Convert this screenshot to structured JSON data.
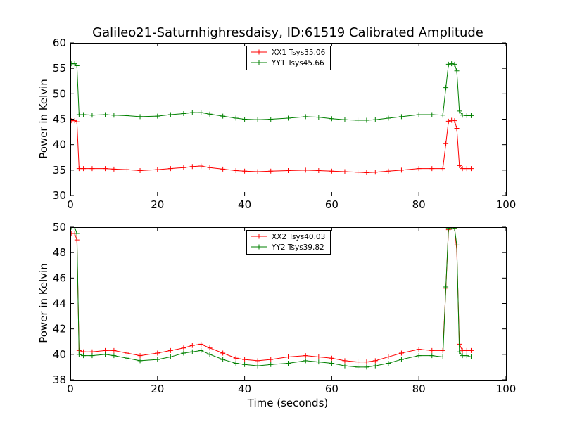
{
  "chart_data": [
    {
      "type": "line",
      "title": "Galileo21-Saturnhighresdaisy, ID:61519 Calibrated Amplitude",
      "xlabel": "",
      "ylabel": "Power in Kelvin",
      "xlim": [
        0,
        100
      ],
      "ylim": [
        30,
        60
      ],
      "xticks": [
        "0",
        "20",
        "40",
        "60",
        "80",
        "100"
      ],
      "yticks": [
        "30",
        "35",
        "40",
        "45",
        "50",
        "55",
        "60"
      ],
      "legend_position": "top-center",
      "series": [
        {
          "name": "XX1 Tsys35.06",
          "color": "#ff0000",
          "x": [
            0.3,
            1.0,
            1.5,
            2.0,
            3,
            5,
            8,
            10,
            13,
            16,
            20,
            23,
            26,
            28,
            30,
            32,
            35,
            38,
            40,
            43,
            46,
            50,
            54,
            57,
            60,
            63,
            66,
            68,
            70,
            73,
            76,
            80,
            83,
            85.5,
            86.2,
            86.8,
            87.5,
            88.2,
            88.7,
            89.3,
            90,
            91,
            92
          ],
          "y": [
            44.7,
            44.7,
            44.5,
            35.3,
            35.3,
            35.3,
            35.3,
            35.2,
            35.1,
            34.9,
            35.1,
            35.3,
            35.5,
            35.7,
            35.8,
            35.5,
            35.2,
            34.9,
            34.8,
            34.7,
            34.8,
            34.9,
            35.0,
            34.9,
            34.8,
            34.7,
            34.6,
            34.5,
            34.6,
            34.8,
            35.0,
            35.3,
            35.3,
            35.3,
            40.2,
            44.6,
            44.8,
            44.7,
            43.2,
            35.9,
            35.3,
            35.3,
            35.3
          ]
        },
        {
          "name": "YY1 Tsys45.66",
          "color": "#008000",
          "x": [
            0.3,
            1.0,
            1.5,
            2.0,
            3,
            5,
            8,
            10,
            13,
            16,
            20,
            23,
            26,
            28,
            30,
            32,
            35,
            38,
            40,
            43,
            46,
            50,
            54,
            57,
            60,
            63,
            66,
            68,
            70,
            73,
            76,
            80,
            83,
            85.5,
            86.2,
            86.8,
            87.5,
            88.2,
            88.7,
            89.3,
            90,
            91,
            92
          ],
          "y": [
            55.9,
            55.9,
            55.5,
            45.9,
            45.9,
            45.8,
            45.9,
            45.8,
            45.7,
            45.5,
            45.6,
            45.9,
            46.1,
            46.3,
            46.3,
            46.0,
            45.6,
            45.2,
            45.0,
            44.9,
            45.0,
            45.2,
            45.5,
            45.4,
            45.1,
            44.9,
            44.8,
            44.8,
            44.9,
            45.2,
            45.5,
            45.9,
            45.9,
            45.8,
            51.2,
            55.8,
            55.9,
            55.8,
            54.5,
            46.6,
            45.8,
            45.7,
            45.7
          ]
        }
      ]
    },
    {
      "type": "line",
      "title": "",
      "xlabel": "Time (seconds)",
      "ylabel": "Power in Kelvin",
      "xlim": [
        0,
        100
      ],
      "ylim": [
        38,
        50
      ],
      "xticks": [
        "0",
        "20",
        "40",
        "60",
        "80",
        "100"
      ],
      "yticks": [
        "38",
        "40",
        "42",
        "44",
        "46",
        "48",
        "50"
      ],
      "legend_position": "top-center",
      "series": [
        {
          "name": "XX2 Tsys40.03",
          "color": "#ff0000",
          "x": [
            0.3,
            1.0,
            1.5,
            2.0,
            3,
            5,
            8,
            10,
            13,
            16,
            20,
            23,
            26,
            28,
            30,
            32,
            35,
            38,
            40,
            43,
            46,
            50,
            54,
            57,
            60,
            63,
            66,
            68,
            70,
            73,
            76,
            80,
            83,
            85.5,
            86.2,
            86.8,
            87.5,
            88.2,
            88.7,
            89.3,
            90,
            91,
            92
          ],
          "y": [
            49.5,
            49.5,
            49.0,
            40.3,
            40.2,
            40.2,
            40.3,
            40.3,
            40.1,
            39.9,
            40.1,
            40.3,
            40.5,
            40.7,
            40.8,
            40.5,
            40.1,
            39.7,
            39.6,
            39.5,
            39.6,
            39.8,
            39.9,
            39.8,
            39.7,
            39.5,
            39.4,
            39.4,
            39.5,
            39.8,
            40.1,
            40.4,
            40.3,
            40.3,
            45.2,
            49.8,
            50.0,
            49.9,
            48.2,
            40.8,
            40.3,
            40.3,
            40.3
          ]
        },
        {
          "name": "YY2 Tsys39.82",
          "color": "#008000",
          "x": [
            0.3,
            1.0,
            1.5,
            2.0,
            3,
            5,
            8,
            10,
            13,
            16,
            20,
            23,
            26,
            28,
            30,
            32,
            35,
            38,
            40,
            43,
            46,
            50,
            54,
            57,
            60,
            63,
            66,
            68,
            70,
            73,
            76,
            80,
            83,
            85.5,
            86.2,
            86.8,
            87.5,
            88.2,
            88.7,
            89.3,
            90,
            91,
            92
          ],
          "y": [
            50.0,
            50.0,
            49.5,
            40.0,
            39.9,
            39.9,
            40.0,
            39.9,
            39.7,
            39.5,
            39.6,
            39.8,
            40.1,
            40.2,
            40.3,
            40.0,
            39.6,
            39.3,
            39.2,
            39.1,
            39.2,
            39.3,
            39.5,
            39.4,
            39.3,
            39.1,
            39.0,
            39.0,
            39.1,
            39.3,
            39.6,
            39.9,
            39.9,
            39.8,
            45.3,
            49.9,
            50.0,
            49.9,
            48.6,
            40.2,
            39.9,
            39.9,
            39.8
          ]
        }
      ]
    }
  ]
}
